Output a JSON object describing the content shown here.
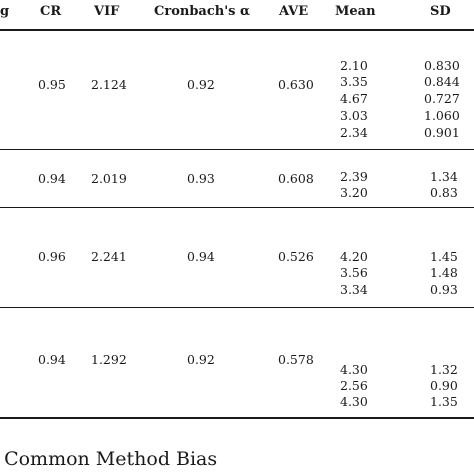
{
  "table": {
    "headers": {
      "partial": "g",
      "cr": "CR",
      "vif": "VIF",
      "alpha": "Cronbach's α",
      "ave": "AVE",
      "mean": "Mean",
      "sd": "SD"
    },
    "blocks": [
      {
        "cr": "0.95",
        "vif": "2.124",
        "alpha": "0.92",
        "ave": "0.630",
        "items": [
          {
            "mean": "2.10",
            "sd": "0.830"
          },
          {
            "mean": "3.35",
            "sd": "0.844"
          },
          {
            "mean": "4.67",
            "sd": "0.727"
          },
          {
            "mean": "3.03",
            "sd": "1.060"
          },
          {
            "mean": "2.34",
            "sd": "0.901"
          }
        ]
      },
      {
        "cr": "0.94",
        "vif": "2.019",
        "alpha": "0.93",
        "ave": "0.608",
        "items": [
          {
            "mean": "2.39",
            "sd": "1.34"
          },
          {
            "mean": "3.20",
            "sd": "0.83"
          }
        ]
      },
      {
        "cr": "0.96",
        "vif": "2.241",
        "alpha": "0.94",
        "ave": "0.526",
        "items": [
          {
            "mean": "4.20",
            "sd": "1.45"
          },
          {
            "mean": "3.56",
            "sd": "1.48"
          },
          {
            "mean": "3.34",
            "sd": "0.93"
          }
        ]
      },
      {
        "cr": "0.94",
        "vif": "1.292",
        "alpha": "0.92",
        "ave": "0.578",
        "items": [
          {
            "mean": "4.30",
            "sd": "1.32"
          },
          {
            "mean": "2.56",
            "sd": "0.90"
          },
          {
            "mean": "4.30",
            "sd": "1.35"
          }
        ]
      }
    ]
  },
  "caption": ". Common Method Bias"
}
